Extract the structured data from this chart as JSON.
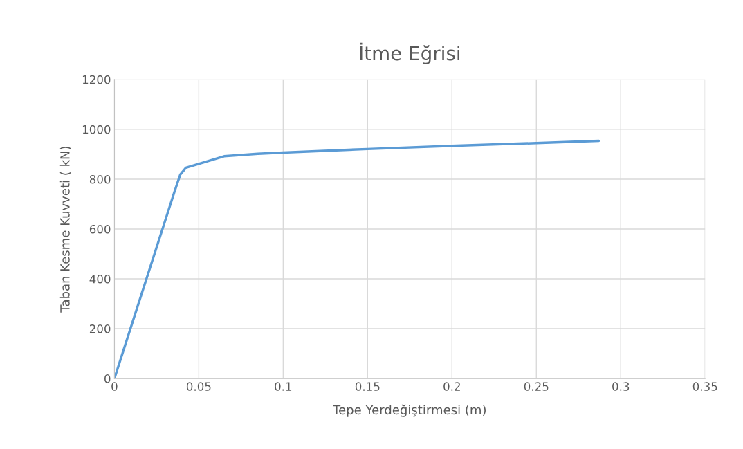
{
  "chart_data": {
    "type": "line",
    "title": "İtme Eğrisi",
    "xlabel": "Tepe Yerdeğiştirmesi (m)",
    "ylabel": "Taban Kesme Kuvveti ( kN)",
    "series": [
      {
        "color": "#5b9bd5",
        "x": [
          0,
          0.0355,
          0.039,
          0.0424,
          0.065,
          0.085,
          0.1,
          0.15,
          0.2,
          0.25,
          0.287
        ],
        "values": [
          0,
          748,
          818,
          846,
          892,
          902,
          907,
          921,
          934,
          945,
          954
        ]
      }
    ],
    "xlim": [
      0,
      0.35
    ],
    "ylim": [
      0,
      1200
    ],
    "xticks": [
      0,
      0.05,
      0.1,
      0.15,
      0.2,
      0.25,
      0.3,
      0.35
    ],
    "yticks": [
      0,
      200,
      400,
      600,
      800,
      1000,
      1200
    ],
    "grid": true,
    "marker": "none",
    "line_style": "solid"
  }
}
